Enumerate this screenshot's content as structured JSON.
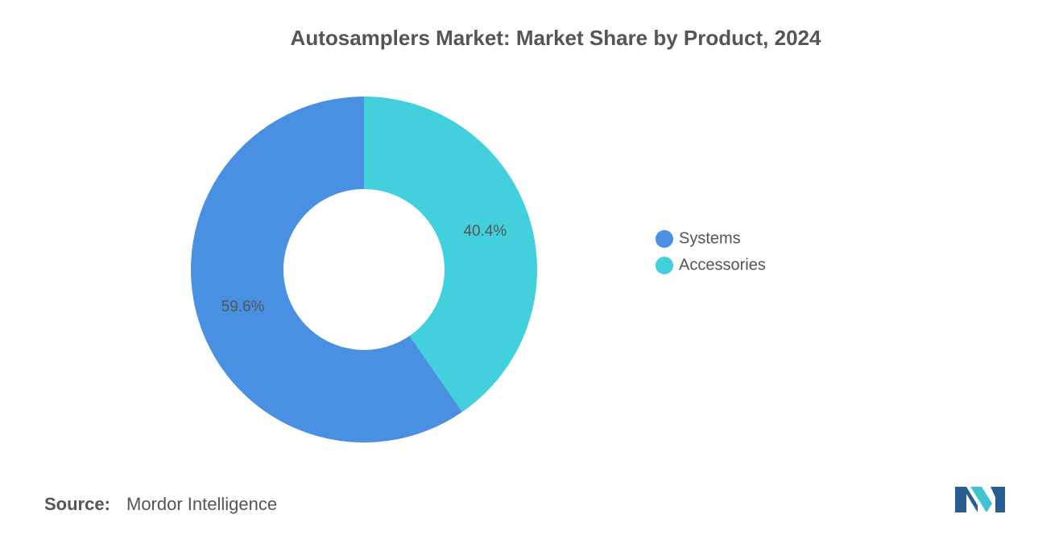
{
  "chart_data": {
    "type": "donut",
    "title": "Autosamplers Market: Market Share by Product, 2024",
    "categories": [
      "Systems",
      "Accessories"
    ],
    "values": [
      59.6,
      40.4
    ],
    "value_labels": [
      "59.6%",
      "40.4%"
    ],
    "colors": [
      "#4a90e2",
      "#41d0dc"
    ]
  },
  "footer": {
    "label": "Source:",
    "text": "Mordor Intelligence"
  }
}
